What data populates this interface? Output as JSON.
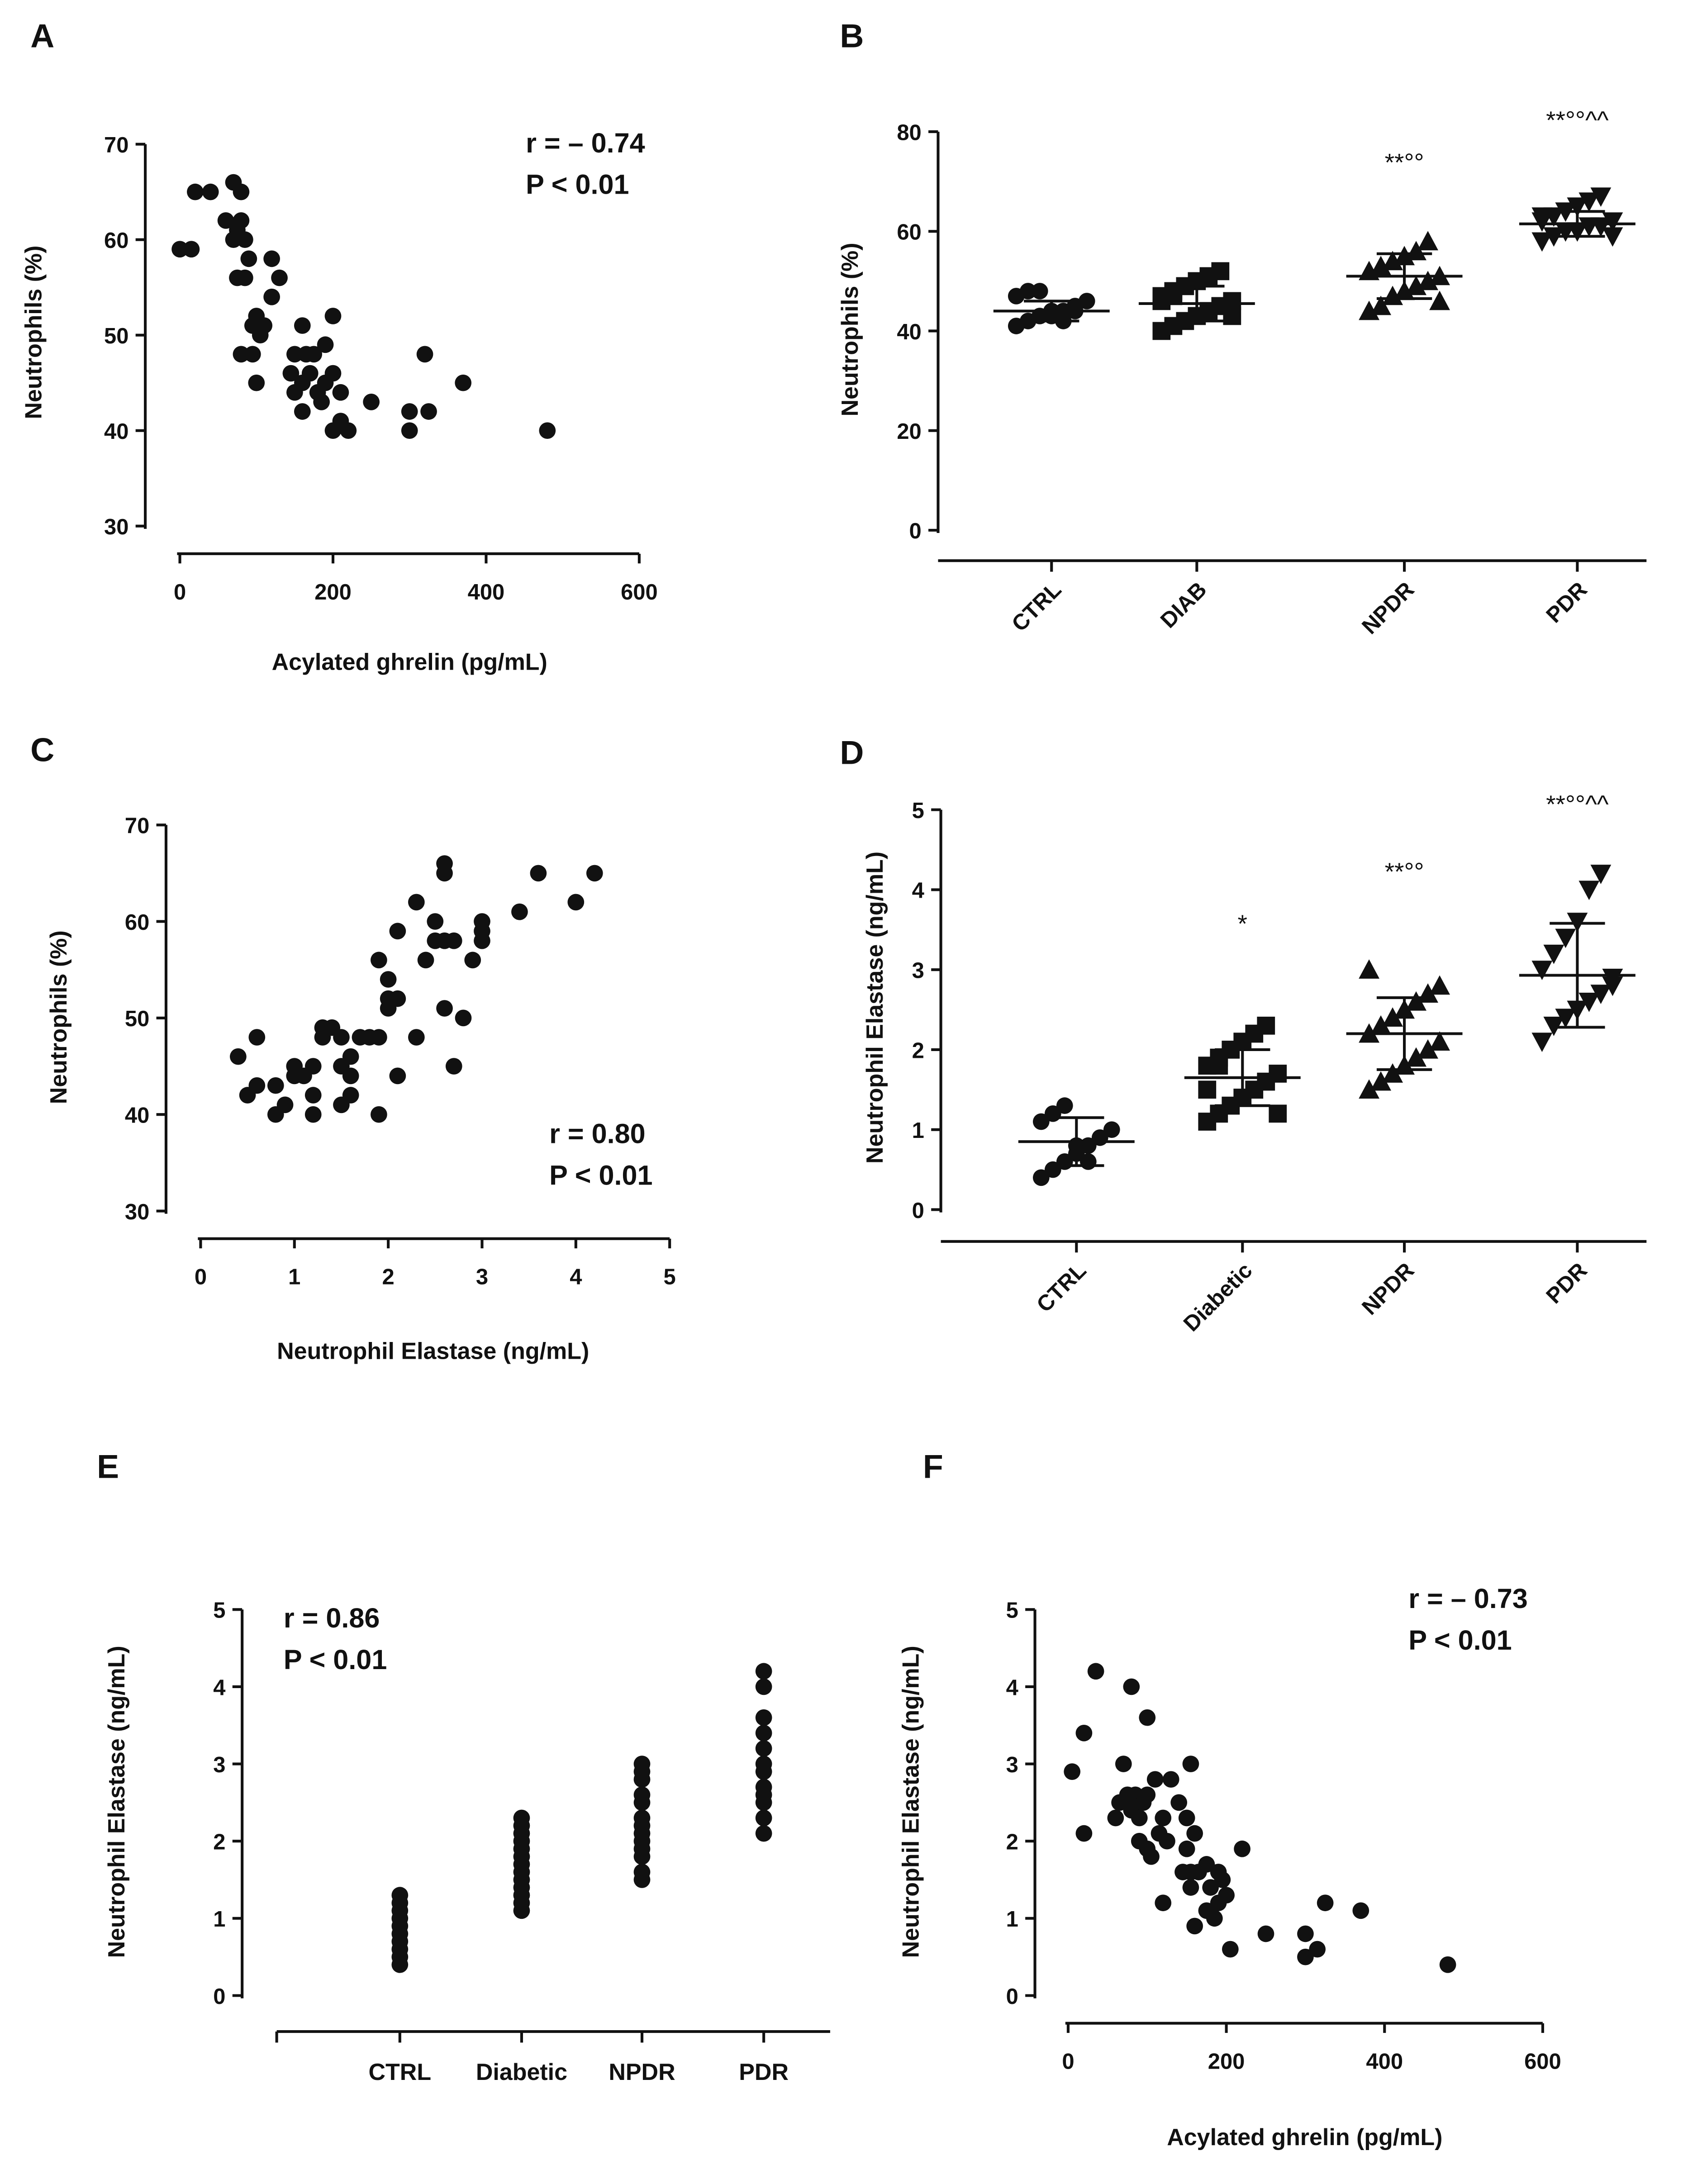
{
  "chart_data": [
    {
      "panel": "A",
      "type": "scatter",
      "xlabel": "Acylated ghrelin (pg/mL)",
      "ylabel": "Neutrophils (%)",
      "xlim": [
        0,
        600
      ],
      "ylim": [
        30,
        70
      ],
      "xticks": [
        0,
        200,
        400,
        600
      ],
      "yticks": [
        30,
        40,
        50,
        60,
        70
      ],
      "annotations": [
        "r = – 0.74",
        "P < 0.01"
      ],
      "points": [
        [
          0,
          59
        ],
        [
          15,
          59
        ],
        [
          20,
          65
        ],
        [
          40,
          65
        ],
        [
          60,
          62
        ],
        [
          70,
          66
        ],
        [
          75,
          61
        ],
        [
          80,
          65
        ],
        [
          70,
          60
        ],
        [
          80,
          62
        ],
        [
          85,
          60
        ],
        [
          75,
          56
        ],
        [
          85,
          56
        ],
        [
          90,
          58
        ],
        [
          100,
          52
        ],
        [
          95,
          51
        ],
        [
          105,
          50
        ],
        [
          110,
          51
        ],
        [
          80,
          48
        ],
        [
          95,
          48
        ],
        [
          100,
          45
        ],
        [
          120,
          58
        ],
        [
          130,
          56
        ],
        [
          120,
          54
        ],
        [
          150,
          48
        ],
        [
          160,
          51
        ],
        [
          145,
          46
        ],
        [
          165,
          48
        ],
        [
          175,
          48
        ],
        [
          190,
          49
        ],
        [
          150,
          44
        ],
        [
          160,
          45
        ],
        [
          170,
          46
        ],
        [
          160,
          42
        ],
        [
          180,
          44
        ],
        [
          190,
          45
        ],
        [
          200,
          46
        ],
        [
          200,
          52
        ],
        [
          185,
          43
        ],
        [
          200,
          40
        ],
        [
          210,
          41
        ],
        [
          220,
          40
        ],
        [
          210,
          44
        ],
        [
          250,
          43
        ],
        [
          300,
          42
        ],
        [
          300,
          40
        ],
        [
          320,
          48
        ],
        [
          325,
          42
        ],
        [
          370,
          45
        ],
        [
          480,
          40
        ]
      ]
    },
    {
      "panel": "B",
      "type": "dot-plot",
      "ylabel": "Neutrophils (%)",
      "ylim": [
        0,
        80
      ],
      "yticks": [
        0,
        20,
        40,
        60,
        80
      ],
      "categories": [
        "CTRL",
        "DIAB",
        "NPDR",
        "PDR"
      ],
      "markers": [
        "circle",
        "square",
        "triangle-up",
        "triangle-down"
      ],
      "groups": [
        {
          "values": [
            41,
            42,
            43,
            44,
            44,
            45,
            46,
            47,
            48,
            48,
            43,
            42,
            44
          ],
          "mean": 44,
          "sd": 2,
          "sig": ""
        },
        {
          "values": [
            40,
            41,
            42,
            43,
            44,
            45,
            46,
            47,
            48,
            49,
            50,
            51,
            52,
            43,
            46,
            47
          ],
          "mean": 45.5,
          "sd": 3.5,
          "sig": ""
        },
        {
          "values": [
            44,
            45,
            47,
            48,
            49,
            50,
            51,
            52,
            53,
            54,
            55,
            56,
            58,
            46
          ],
          "mean": 51,
          "sd": 4.5,
          "sig": "**°°"
        },
        {
          "values": [
            58,
            59,
            60,
            60,
            61,
            61,
            62,
            62,
            63,
            64,
            65,
            66,
            67,
            59,
            63
          ],
          "mean": 61.5,
          "sd": 2.5,
          "sig": "**°°^^"
        }
      ]
    },
    {
      "panel": "C",
      "type": "scatter",
      "xlabel": "Neutrophil Elastase (ng/mL)",
      "ylabel": "Neutrophils (%)",
      "xlim": [
        0,
        5
      ],
      "ylim": [
        30,
        70
      ],
      "xticks": [
        0,
        1,
        2,
        3,
        4,
        5
      ],
      "yticks": [
        30,
        40,
        50,
        60,
        70
      ],
      "annotations": [
        "r = 0.80",
        "P < 0.01"
      ],
      "points": [
        [
          0.4,
          46
        ],
        [
          0.5,
          42
        ],
        [
          0.6,
          48
        ],
        [
          0.6,
          43
        ],
        [
          0.8,
          40
        ],
        [
          0.8,
          43
        ],
        [
          0.9,
          41
        ],
        [
          1,
          44
        ],
        [
          1,
          45
        ],
        [
          1.1,
          44
        ],
        [
          1.2,
          45
        ],
        [
          1.2,
          42
        ],
        [
          1.2,
          40
        ],
        [
          1.3,
          48
        ],
        [
          1.3,
          49
        ],
        [
          1.4,
          49
        ],
        [
          1.5,
          48
        ],
        [
          1.5,
          45
        ],
        [
          1.5,
          41
        ],
        [
          1.6,
          44
        ],
        [
          1.6,
          42
        ],
        [
          1.6,
          46
        ],
        [
          1.7,
          48
        ],
        [
          1.8,
          48
        ],
        [
          1.9,
          48
        ],
        [
          1.9,
          40
        ],
        [
          1.9,
          56
        ],
        [
          2,
          52
        ],
        [
          2,
          51
        ],
        [
          2,
          54
        ],
        [
          2.1,
          52
        ],
        [
          2.1,
          44
        ],
        [
          2.1,
          59
        ],
        [
          2.3,
          62
        ],
        [
          2.3,
          48
        ],
        [
          2.4,
          56
        ],
        [
          2.5,
          60
        ],
        [
          2.5,
          58
        ],
        [
          2.6,
          66
        ],
        [
          2.6,
          65
        ],
        [
          2.6,
          51
        ],
        [
          2.6,
          58
        ],
        [
          2.7,
          58
        ],
        [
          2.7,
          45
        ],
        [
          2.8,
          50
        ],
        [
          2.9,
          56
        ],
        [
          3,
          58
        ],
        [
          3,
          59
        ],
        [
          3,
          60
        ],
        [
          3.4,
          61
        ],
        [
          3.6,
          65
        ],
        [
          4,
          62
        ],
        [
          4.2,
          65
        ]
      ]
    },
    {
      "panel": "D",
      "type": "dot-plot",
      "ylabel": "Neutrophil Elastase (ng/mL)",
      "ylim": [
        0,
        5
      ],
      "yticks": [
        0,
        1,
        2,
        3,
        4,
        5
      ],
      "categories": [
        "CTRL",
        "Diabetic",
        "NPDR",
        "PDR"
      ],
      "markers": [
        "circle",
        "square",
        "triangle-up",
        "triangle-down"
      ],
      "groups": [
        {
          "values": [
            0.4,
            0.5,
            0.6,
            0.7,
            0.8,
            0.9,
            1.0,
            1.1,
            1.2,
            1.3,
            0.8,
            0.6
          ],
          "mean": 0.85,
          "sd": 0.3,
          "sig": ""
        },
        {
          "values": [
            1.1,
            1.2,
            1.3,
            1.4,
            1.5,
            1.6,
            1.7,
            1.8,
            1.9,
            2.0,
            2.1,
            2.2,
            2.3,
            1.2,
            1.5,
            1.8
          ],
          "mean": 1.65,
          "sd": 0.35,
          "sig": "*"
        },
        {
          "values": [
            1.5,
            1.6,
            1.7,
            1.8,
            1.9,
            2.0,
            2.1,
            2.2,
            2.3,
            2.4,
            2.5,
            2.6,
            2.7,
            2.8,
            3.0
          ],
          "mean": 2.2,
          "sd": 0.45,
          "sig": "**°°"
        },
        {
          "values": [
            2.1,
            2.3,
            2.4,
            2.5,
            2.6,
            2.7,
            2.9,
            3.0,
            3.2,
            3.4,
            3.6,
            4.0,
            4.2,
            2.8
          ],
          "mean": 2.93,
          "sd": 0.65,
          "sig": "**°°^^"
        }
      ]
    },
    {
      "panel": "E",
      "type": "strip",
      "ylabel": "Neutrophil Elastase (ng/mL)",
      "ylim": [
        0,
        5
      ],
      "yticks": [
        0,
        1,
        2,
        3,
        4,
        5
      ],
      "categories": [
        "CTRL",
        "Diabetic",
        "NPDR",
        "PDR"
      ],
      "annotations": [
        "r = 0.86",
        "P < 0.01"
      ],
      "groups": [
        {
          "values": [
            0.4,
            0.5,
            0.6,
            0.7,
            0.8,
            0.9,
            1.0,
            1.1,
            1.2,
            1.3
          ]
        },
        {
          "values": [
            1.1,
            1.2,
            1.3,
            1.4,
            1.5,
            1.6,
            1.7,
            1.8,
            1.9,
            2.0,
            2.1,
            2.2,
            2.3
          ]
        },
        {
          "values": [
            1.5,
            1.6,
            1.8,
            1.9,
            2.0,
            2.1,
            2.2,
            2.3,
            2.5,
            2.6,
            2.8,
            2.9,
            3.0
          ]
        },
        {
          "values": [
            2.1,
            2.3,
            2.5,
            2.6,
            2.7,
            2.9,
            3.0,
            3.2,
            3.4,
            3.6,
            4.0,
            4.2
          ]
        }
      ]
    },
    {
      "panel": "F",
      "type": "scatter",
      "xlabel": "Acylated ghrelin  (pg/mL)",
      "ylabel": "Neutrophil Elastase (ng/mL)",
      "xlim": [
        0,
        600
      ],
      "ylim": [
        0,
        5
      ],
      "xticks": [
        0,
        200,
        400,
        600
      ],
      "yticks": [
        0,
        1,
        2,
        3,
        4,
        5
      ],
      "annotations": [
        "r = – 0.73",
        "P < 0.01"
      ],
      "points": [
        [
          5,
          2.9
        ],
        [
          20,
          3.4
        ],
        [
          20,
          2.1
        ],
        [
          35,
          4.2
        ],
        [
          60,
          2.3
        ],
        [
          65,
          2.5
        ],
        [
          70,
          3.0
        ],
        [
          75,
          2.6
        ],
        [
          80,
          2.4
        ],
        [
          80,
          4.0
        ],
        [
          85,
          2.6
        ],
        [
          90,
          2.0
        ],
        [
          90,
          2.3
        ],
        [
          95,
          2.5
        ],
        [
          100,
          1.9
        ],
        [
          100,
          2.6
        ],
        [
          100,
          3.6
        ],
        [
          105,
          1.8
        ],
        [
          110,
          2.8
        ],
        [
          115,
          2.1
        ],
        [
          120,
          2.3
        ],
        [
          120,
          1.2
        ],
        [
          125,
          2.0
        ],
        [
          130,
          2.8
        ],
        [
          140,
          2.5
        ],
        [
          145,
          1.6
        ],
        [
          150,
          1.9
        ],
        [
          150,
          2.3
        ],
        [
          155,
          3.0
        ],
        [
          155,
          1.6
        ],
        [
          155,
          1.4
        ],
        [
          160,
          0.9
        ],
        [
          160,
          2.1
        ],
        [
          165,
          1.6
        ],
        [
          175,
          1.7
        ],
        [
          175,
          1.1
        ],
        [
          180,
          1.4
        ],
        [
          185,
          1.0
        ],
        [
          190,
          1.6
        ],
        [
          190,
          1.2
        ],
        [
          195,
          1.5
        ],
        [
          200,
          1.3
        ],
        [
          205,
          0.6
        ],
        [
          220,
          1.9
        ],
        [
          250,
          0.8
        ],
        [
          300,
          0.8
        ],
        [
          300,
          0.5
        ],
        [
          315,
          0.6
        ],
        [
          325,
          1.2
        ],
        [
          370,
          1.1
        ],
        [
          480,
          0.4
        ]
      ]
    }
  ]
}
